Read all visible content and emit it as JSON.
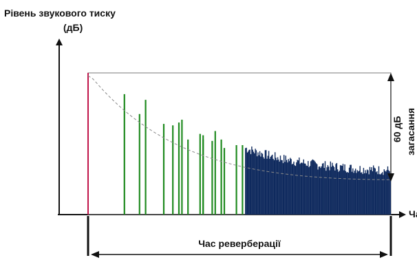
{
  "diagram": {
    "y_axis_label_line1": "Рівень звукового тиску",
    "y_axis_label_line2": "(дБ)",
    "x_axis_label": "Час",
    "decay_label_top": "60 дБ",
    "decay_label_side": "загасання",
    "reverb_time_label": "Час реверберації"
  },
  "colors": {
    "direct_sound": "#c0144a",
    "early_reflections": "#1f8a1f",
    "late_reverb": "#0f2a5e",
    "decay_curve": "#8a8a8a",
    "axis": "#111111"
  },
  "early_reflections": [
    {
      "time": 0.12,
      "level": 0.85
    },
    {
      "time": 0.17,
      "level": 0.71
    },
    {
      "time": 0.19,
      "level": 0.81
    },
    {
      "time": 0.25,
      "level": 0.64
    },
    {
      "time": 0.28,
      "level": 0.63
    },
    {
      "time": 0.3,
      "level": 0.65
    },
    {
      "time": 0.31,
      "level": 0.67
    },
    {
      "time": 0.33,
      "level": 0.53
    },
    {
      "time": 0.37,
      "level": 0.57
    },
    {
      "time": 0.38,
      "level": 0.53
    },
    {
      "time": 0.38,
      "level": 0.56
    },
    {
      "time": 0.41,
      "level": 0.52
    },
    {
      "time": 0.42,
      "level": 0.59
    },
    {
      "time": 0.44,
      "level": 0.53
    },
    {
      "time": 0.45,
      "level": 0.47
    },
    {
      "time": 0.49,
      "level": 0.49
    },
    {
      "time": 0.51,
      "level": 0.49
    }
  ]
}
